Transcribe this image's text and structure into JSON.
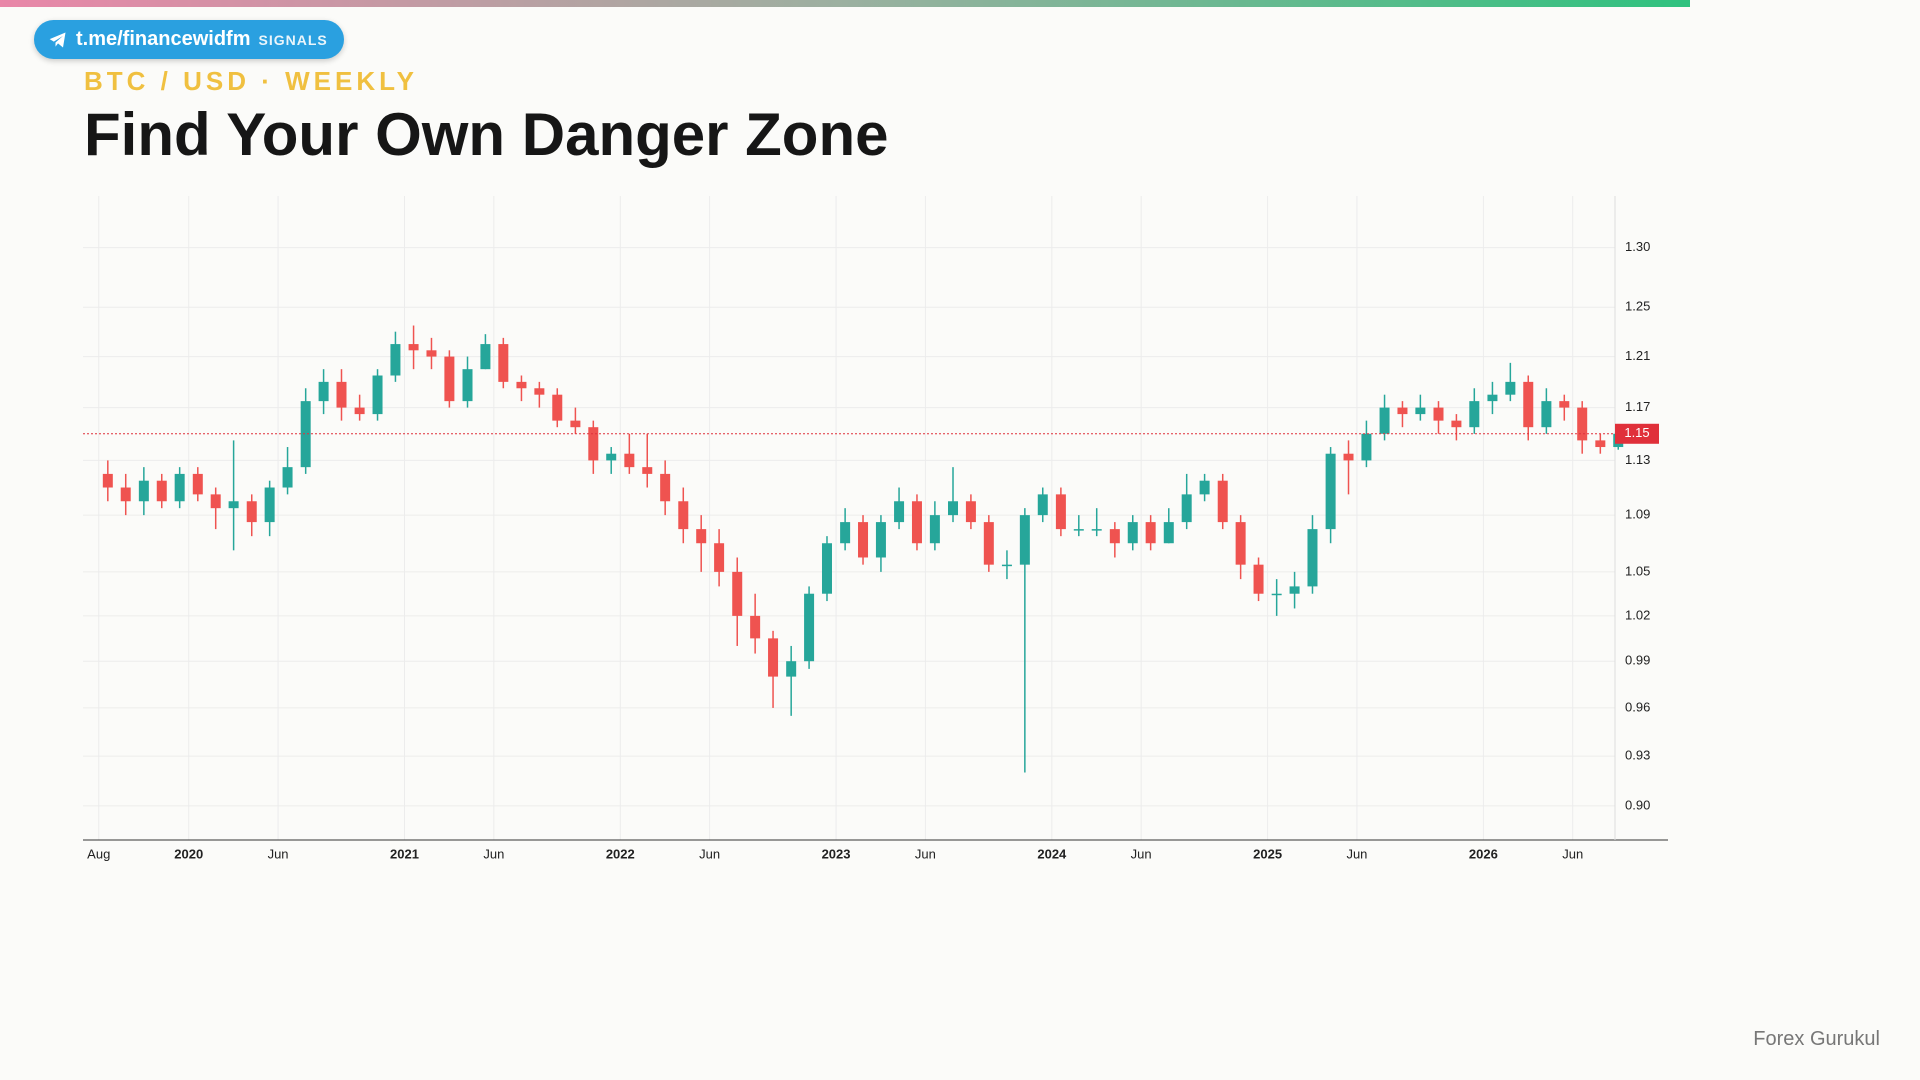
{
  "header": {
    "badge": "t.me/financewidfm",
    "badge_tag": "SIGNALS"
  },
  "footer": "Forex Gurukul",
  "chart_data": {
    "type": "candlestick",
    "subtitle": "BTC / USD · WEEKLY",
    "title": "Find Your Own Danger Zone",
    "log": true,
    "grid": true,
    "up_color": "#26a69a",
    "down_color": "#ef5350",
    "last_price": 1.15,
    "last_price_color": "#e0303a",
    "xlim": [
      2019.51,
      2026.61
    ],
    "ylim": [
      0.88,
      1.345
    ],
    "xticks": [
      {
        "value": 2019.583,
        "label": "Aug"
      },
      2020,
      {
        "value": 2020.414,
        "label": "Jun"
      },
      2021,
      {
        "value": 2021.414,
        "label": "Jun"
      },
      2022,
      {
        "value": 2022.414,
        "label": "Jun"
      },
      2023,
      {
        "value": 2023.414,
        "label": "Jun"
      },
      2024,
      {
        "value": 2024.414,
        "label": "Jun"
      },
      2025,
      {
        "value": 2025.414,
        "label": "Jun"
      },
      2026,
      {
        "value": 2026.414,
        "label": "Jun"
      }
    ],
    "yticks": [
      {
        "value": 0.9,
        "label": "0.90"
      },
      0.93,
      0.96,
      0.99,
      1.02,
      1.05,
      1.09,
      1.13,
      1.17,
      1.21,
      1.25,
      {
        "value": 1.3,
        "label": "1.30"
      }
    ],
    "x": [
      2019.625,
      2019.708,
      2019.792,
      2019.875,
      2019.958,
      2020.042,
      2020.125,
      2020.208,
      2020.292,
      2020.375,
      2020.458,
      2020.542,
      2020.625,
      2020.708,
      2020.792,
      2020.875,
      2020.958,
      2021.042,
      2021.125,
      2021.208,
      2021.292,
      2021.375,
      2021.458,
      2021.542,
      2021.625,
      2021.708,
      2021.792,
      2021.875,
      2021.958,
      2022.042,
      2022.125,
      2022.208,
      2022.292,
      2022.375,
      2022.458,
      2022.542,
      2022.625,
      2022.708,
      2022.792,
      2022.875,
      2022.958,
      2023.042,
      2023.125,
      2023.208,
      2023.292,
      2023.375,
      2023.458,
      2023.542,
      2023.625,
      2023.708,
      2023.792,
      2023.875,
      2023.958,
      2024.042,
      2024.125,
      2024.208,
      2024.292,
      2024.375,
      2024.458,
      2024.542,
      2024.625,
      2024.708,
      2024.792,
      2024.875,
      2024.958,
      2025.042,
      2025.125,
      2025.208,
      2025.292,
      2025.375,
      2025.458,
      2025.542,
      2025.625,
      2025.708,
      2025.792,
      2025.875,
      2025.958,
      2026.042,
      2026.125,
      2026.208,
      2026.292,
      2026.375,
      2026.458,
      2026.542,
      2026.625
    ],
    "open": [
      1.12,
      1.11,
      1.1,
      1.115,
      1.1,
      1.12,
      1.105,
      1.095,
      1.1,
      1.085,
      1.11,
      1.125,
      1.175,
      1.19,
      1.17,
      1.165,
      1.195,
      1.22,
      1.215,
      1.21,
      1.175,
      1.2,
      1.22,
      1.19,
      1.185,
      1.18,
      1.16,
      1.155,
      1.13,
      1.135,
      1.125,
      1.12,
      1.1,
      1.08,
      1.07,
      1.05,
      1.02,
      1.005,
      0.98,
      0.99,
      1.035,
      1.07,
      1.085,
      1.06,
      1.085,
      1.1,
      1.07,
      1.09,
      1.1,
      1.085,
      1.055,
      1.055,
      1.09,
      1.105,
      1.08,
      1.08,
      1.08,
      1.07,
      1.085,
      1.07,
      1.085,
      1.105,
      1.115,
      1.085,
      1.055,
      1.035,
      1.035,
      1.04,
      1.08,
      1.135,
      1.13,
      1.15,
      1.17,
      1.165,
      1.17,
      1.16,
      1.155,
      1.175,
      1.18,
      1.19,
      1.155,
      1.175,
      1.17,
      1.145,
      1.14
    ],
    "high": [
      1.13,
      1.12,
      1.125,
      1.12,
      1.125,
      1.125,
      1.11,
      1.145,
      1.105,
      1.115,
      1.14,
      1.185,
      1.2,
      1.2,
      1.18,
      1.2,
      1.23,
      1.235,
      1.225,
      1.215,
      1.21,
      1.228,
      1.225,
      1.195,
      1.19,
      1.185,
      1.17,
      1.16,
      1.14,
      1.15,
      1.15,
      1.13,
      1.11,
      1.09,
      1.08,
      1.06,
      1.035,
      1.01,
      1.0,
      1.04,
      1.075,
      1.095,
      1.09,
      1.09,
      1.11,
      1.105,
      1.1,
      1.125,
      1.105,
      1.09,
      1.065,
      1.095,
      1.11,
      1.11,
      1.09,
      1.095,
      1.085,
      1.09,
      1.09,
      1.095,
      1.12,
      1.12,
      1.12,
      1.09,
      1.06,
      1.045,
      1.05,
      1.09,
      1.14,
      1.145,
      1.16,
      1.18,
      1.175,
      1.18,
      1.175,
      1.165,
      1.185,
      1.19,
      1.205,
      1.195,
      1.185,
      1.18,
      1.175,
      1.15,
      1.155
    ],
    "low": [
      1.1,
      1.09,
      1.09,
      1.095,
      1.095,
      1.1,
      1.08,
      1.065,
      1.075,
      1.075,
      1.105,
      1.12,
      1.165,
      1.16,
      1.16,
      1.16,
      1.19,
      1.2,
      1.2,
      1.17,
      1.17,
      1.2,
      1.185,
      1.175,
      1.17,
      1.155,
      1.15,
      1.12,
      1.12,
      1.12,
      1.11,
      1.09,
      1.07,
      1.05,
      1.04,
      1.0,
      0.995,
      0.96,
      0.955,
      0.985,
      1.03,
      1.065,
      1.055,
      1.05,
      1.08,
      1.065,
      1.065,
      1.085,
      1.08,
      1.05,
      1.045,
      0.92,
      1.085,
      1.075,
      1.075,
      1.075,
      1.06,
      1.065,
      1.065,
      1.07,
      1.08,
      1.1,
      1.08,
      1.045,
      1.03,
      1.02,
      1.025,
      1.035,
      1.07,
      1.105,
      1.125,
      1.145,
      1.155,
      1.16,
      1.15,
      1.145,
      1.15,
      1.165,
      1.175,
      1.145,
      1.15,
      1.16,
      1.135,
      1.135,
      1.138
    ],
    "close": [
      1.11,
      1.1,
      1.115,
      1.1,
      1.12,
      1.105,
      1.095,
      1.1,
      1.085,
      1.11,
      1.125,
      1.175,
      1.19,
      1.17,
      1.165,
      1.195,
      1.22,
      1.215,
      1.21,
      1.175,
      1.2,
      1.22,
      1.19,
      1.185,
      1.18,
      1.16,
      1.155,
      1.13,
      1.135,
      1.125,
      1.12,
      1.1,
      1.08,
      1.07,
      1.05,
      1.02,
      1.005,
      0.98,
      0.99,
      1.035,
      1.07,
      1.085,
      1.06,
      1.085,
      1.1,
      1.07,
      1.09,
      1.1,
      1.085,
      1.055,
      1.055,
      1.09,
      1.105,
      1.08,
      1.08,
      1.08,
      1.07,
      1.085,
      1.07,
      1.085,
      1.105,
      1.115,
      1.085,
      1.055,
      1.035,
      1.035,
      1.04,
      1.08,
      1.135,
      1.13,
      1.15,
      1.17,
      1.165,
      1.17,
      1.16,
      1.155,
      1.175,
      1.18,
      1.19,
      1.155,
      1.175,
      1.17,
      1.145,
      1.14,
      1.15
    ]
  }
}
